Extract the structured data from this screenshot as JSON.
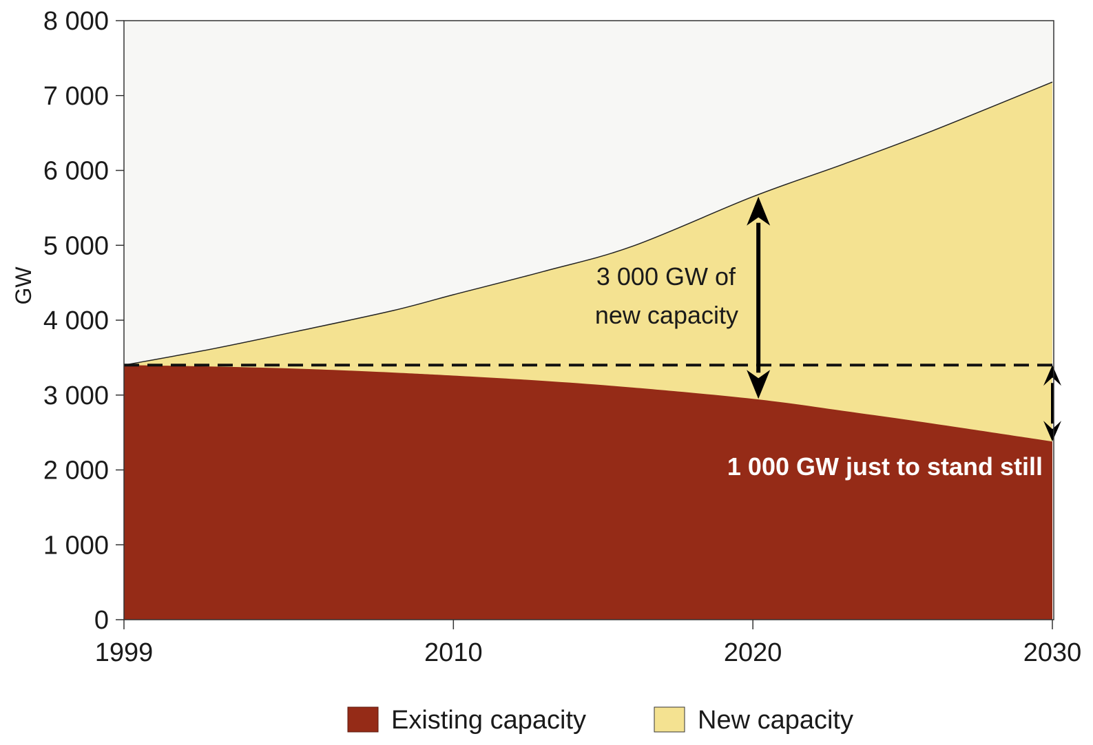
{
  "chart_data": {
    "type": "area",
    "ylabel": "GW",
    "xlabel": "",
    "x": [
      1999,
      2002,
      2005,
      2008,
      2010,
      2013,
      2016,
      2020,
      2023,
      2026,
      2030
    ],
    "xticks": [
      1999,
      2010,
      2020,
      2030
    ],
    "ylim": [
      0,
      8000
    ],
    "yticks": [
      0,
      1000,
      2000,
      3000,
      4000,
      5000,
      6000,
      7000,
      8000
    ],
    "ytick_labels": [
      "0",
      "1 000",
      "2 000",
      "3 000",
      "4 000",
      "5 000",
      "6 000",
      "7 000",
      "8 000"
    ],
    "series": [
      {
        "name": "Existing capacity",
        "color": "#952b17",
        "values": [
          3400,
          3380,
          3350,
          3300,
          3260,
          3190,
          3100,
          2950,
          2790,
          2620,
          2380
        ]
      },
      {
        "name": "New capacity",
        "color": "#f4e291",
        "values": [
          3400,
          3620,
          3870,
          4130,
          4340,
          4650,
          4990,
          5650,
          6080,
          6530,
          7180
        ]
      }
    ],
    "reference_line": {
      "y": 3400,
      "style": "dashed"
    },
    "annotations": [
      {
        "lines": [
          "3 000 GW of",
          "new capacity"
        ],
        "arrow_x": 2020,
        "from": 2950,
        "to": 5650
      },
      {
        "lines": [
          "1 000 GW just to stand still"
        ],
        "arrow_x": 2030,
        "from": 2380,
        "to": 3400
      }
    ],
    "legend_position": "bottom-center",
    "grid": false
  }
}
